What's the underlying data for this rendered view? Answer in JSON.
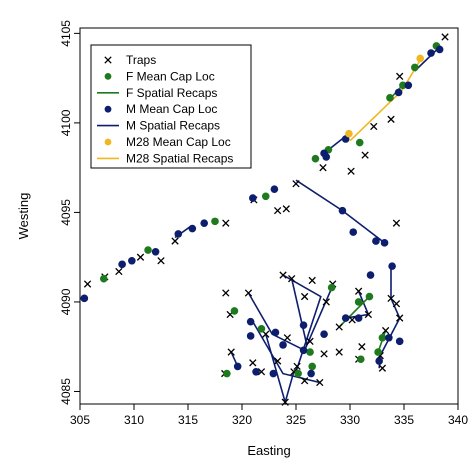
{
  "chart_data": {
    "type": "scatter",
    "xlabel": "Easting",
    "ylabel": "Westing",
    "xlim": [
      305,
      340
    ],
    "ylim": [
      4084.3,
      4105.3
    ],
    "x_ticks": [
      "305",
      "310",
      "315",
      "320",
      "325",
      "330",
      "335",
      "340"
    ],
    "y_ticks": [
      "4085",
      "4090",
      "4095",
      "4100",
      "4105"
    ],
    "legend_position": "top-left",
    "legend": [
      {
        "label": "Traps",
        "kind": "cross",
        "color": "#000000"
      },
      {
        "label": "F Mean Cap Loc",
        "kind": "dot",
        "color": "#1f7a1f"
      },
      {
        "label": "F Spatial Recaps",
        "kind": "line",
        "color": "#1f7a1f"
      },
      {
        "label": "M Mean Cap Loc",
        "kind": "dot",
        "color": "#0d1e6e"
      },
      {
        "label": "M Spatial Recaps",
        "kind": "line",
        "color": "#0d1e6e"
      },
      {
        "label": "M28 Mean Cap Loc",
        "kind": "dot",
        "color": "#f2b620"
      },
      {
        "label": "M28 Spatial Recaps",
        "kind": "line",
        "color": "#f2b620"
      }
    ],
    "series": [
      {
        "name": "Traps",
        "points": [
          [
            305.7,
            4091.0
          ],
          [
            307.3,
            4091.4
          ],
          [
            308.6,
            4091.7
          ],
          [
            310.6,
            4092.5
          ],
          [
            312.5,
            4092.3
          ],
          [
            313.8,
            4093.4
          ],
          [
            318.5,
            4094.4
          ],
          [
            321.1,
            4095.7
          ],
          [
            323.3,
            4095.1
          ],
          [
            324.1,
            4095.2
          ],
          [
            325.0,
            4096.6
          ],
          [
            327.5,
            4097.5
          ],
          [
            330.1,
            4097.3
          ],
          [
            331.4,
            4098.2
          ],
          [
            332.2,
            4099.8
          ],
          [
            333.8,
            4100.2
          ],
          [
            334.6,
            4102.6
          ],
          [
            338.8,
            4104.8
          ],
          [
            334.3,
            4094.4
          ],
          [
            318.5,
            4090.5
          ],
          [
            318.9,
            4089.3
          ],
          [
            320.6,
            4090.5
          ],
          [
            323.8,
            4091.5
          ],
          [
            324.6,
            4091.3
          ],
          [
            326.5,
            4091.2
          ],
          [
            325.8,
            4090.3
          ],
          [
            327.8,
            4090.0
          ],
          [
            328.4,
            4091.0
          ],
          [
            330.8,
            4090.6
          ],
          [
            333.8,
            4090.2
          ],
          [
            334.3,
            4089.9
          ],
          [
            322.2,
            4088.2
          ],
          [
            324.2,
            4088.0
          ],
          [
            326.3,
            4087.8
          ],
          [
            327.6,
            4087.1
          ],
          [
            329.0,
            4088.6
          ],
          [
            330.2,
            4089.0
          ],
          [
            331.7,
            4089.3
          ],
          [
            333.3,
            4088.4
          ],
          [
            334.6,
            4089.1
          ],
          [
            319.0,
            4087.2
          ],
          [
            321.0,
            4086.6
          ],
          [
            323.3,
            4086.7
          ],
          [
            325.1,
            4086.4
          ],
          [
            329.0,
            4087.2
          ],
          [
            331.1,
            4087.5
          ],
          [
            332.8,
            4087.0
          ],
          [
            318.4,
            4086.0
          ],
          [
            321.8,
            4086.1
          ],
          [
            324.8,
            4086.1
          ],
          [
            330.8,
            4086.8
          ],
          [
            333.0,
            4086.3
          ],
          [
            327.2,
            4085.5
          ],
          [
            324.0,
            4084.4
          ],
          [
            325.8,
            4085.6
          ]
        ]
      },
      {
        "name": "F Mean Cap Loc",
        "points": [
          [
            307.2,
            4091.3
          ],
          [
            311.3,
            4092.9
          ],
          [
            317.5,
            4094.5
          ],
          [
            322.2,
            4095.9
          ],
          [
            326.8,
            4098.0
          ],
          [
            328.0,
            4098.5
          ],
          [
            330.9,
            4098.9
          ],
          [
            333.7,
            4101.4
          ],
          [
            334.9,
            4102.1
          ],
          [
            336.0,
            4103.1
          ],
          [
            338.0,
            4104.3
          ],
          [
            319.3,
            4089.5
          ],
          [
            321.8,
            4088.5
          ],
          [
            326.3,
            4087.2
          ],
          [
            328.3,
            4090.8
          ],
          [
            330.8,
            4090.0
          ],
          [
            331.8,
            4090.3
          ],
          [
            333.0,
            4088.0
          ],
          [
            332.6,
            4087.2
          ],
          [
            331.0,
            4086.8
          ],
          [
            326.5,
            4086.4
          ],
          [
            325.2,
            4086.0
          ],
          [
            318.6,
            4086.0
          ]
        ]
      },
      {
        "name": "M Mean Cap Loc",
        "points": [
          [
            305.4,
            4090.2
          ],
          [
            308.9,
            4092.1
          ],
          [
            309.8,
            4092.3
          ],
          [
            312.0,
            4092.8
          ],
          [
            314.1,
            4093.8
          ],
          [
            315.4,
            4094.1
          ],
          [
            316.5,
            4094.4
          ],
          [
            321.0,
            4095.8
          ],
          [
            323.0,
            4096.3
          ],
          [
            327.6,
            4098.3
          ],
          [
            327.8,
            4098.1
          ],
          [
            329.6,
            4099.1
          ],
          [
            334.5,
            4101.7
          ],
          [
            335.4,
            4102.1
          ],
          [
            337.5,
            4103.9
          ],
          [
            338.3,
            4104.1
          ],
          [
            329.3,
            4095.1
          ],
          [
            330.3,
            4093.9
          ],
          [
            332.4,
            4093.4
          ],
          [
            333.2,
            4093.3
          ],
          [
            333.9,
            4092.0
          ],
          [
            331.9,
            4091.5
          ],
          [
            320.8,
            4088.9
          ],
          [
            320.8,
            4088.1
          ],
          [
            323.1,
            4088.3
          ],
          [
            325.7,
            4088.7
          ],
          [
            323.8,
            4087.6
          ],
          [
            327.6,
            4088.2
          ],
          [
            325.7,
            4087.3
          ],
          [
            332.7,
            4086.7
          ],
          [
            333.6,
            4088.0
          ],
          [
            334.6,
            4087.8
          ],
          [
            319.6,
            4086.4
          ],
          [
            321.3,
            4086.1
          ],
          [
            322.9,
            4086.0
          ],
          [
            326.4,
            4086.0
          ],
          [
            330.8,
            4089.1
          ],
          [
            329.6,
            4089.1
          ]
        ]
      },
      {
        "name": "M28 Mean Cap Loc",
        "points": [
          [
            329.9,
            4099.4
          ],
          [
            336.5,
            4103.6
          ]
        ]
      }
    ],
    "recap_lines": [
      {
        "series": "M Spatial Recaps",
        "points": [
          [
            313.8,
            4093.6
          ],
          [
            315.2,
            4094.2
          ]
        ]
      },
      {
        "series": "M Spatial Recaps",
        "points": [
          [
            325.0,
            4096.8
          ],
          [
            329.3,
            4095.1
          ],
          [
            333.2,
            4093.3
          ]
        ]
      },
      {
        "series": "M Spatial Recaps",
        "points": [
          [
            327.6,
            4098.3
          ],
          [
            329.9,
            4099.4
          ]
        ]
      },
      {
        "series": "M Spatial Recaps",
        "points": [
          [
            336.0,
            4102.9
          ],
          [
            338.4,
            4104.3
          ]
        ]
      },
      {
        "series": "M Spatial Recaps",
        "points": [
          [
            320.6,
            4090.5
          ],
          [
            322.8,
            4088.2
          ],
          [
            325.8,
            4087.3
          ]
        ]
      },
      {
        "series": "M Spatial Recaps",
        "points": [
          [
            323.8,
            4091.5
          ],
          [
            327.3,
            4090.3
          ],
          [
            325.0,
            4086.1
          ]
        ]
      },
      {
        "series": "M Spatial Recaps",
        "points": [
          [
            324.6,
            4091.3
          ],
          [
            326.0,
            4087.6
          ]
        ]
      },
      {
        "series": "M Spatial Recaps",
        "points": [
          [
            328.4,
            4090.9
          ],
          [
            325.8,
            4087.3
          ]
        ]
      },
      {
        "series": "M Spatial Recaps",
        "points": [
          [
            321.0,
            4088.9
          ],
          [
            323.8,
            4086.0
          ],
          [
            327.2,
            4085.5
          ]
        ]
      },
      {
        "series": "M Spatial Recaps",
        "points": [
          [
            319.0,
            4087.2
          ],
          [
            319.6,
            4086.4
          ]
        ]
      },
      {
        "series": "M Spatial Recaps",
        "points": [
          [
            322.2,
            4088.2
          ],
          [
            324.0,
            4084.4
          ],
          [
            324.8,
            4086.1
          ]
        ]
      },
      {
        "series": "M Spatial Recaps",
        "points": [
          [
            333.8,
            4092.0
          ],
          [
            333.8,
            4090.2
          ],
          [
            334.6,
            4089.1
          ],
          [
            332.8,
            4087.0
          ],
          [
            332.7,
            4086.3
          ]
        ]
      },
      {
        "series": "M Spatial Recaps",
        "points": [
          [
            330.8,
            4090.6
          ],
          [
            331.7,
            4089.3
          ],
          [
            329.6,
            4089.1
          ]
        ]
      },
      {
        "series": "F Spatial Recaps",
        "points": [
          [
            329.0,
            4088.6
          ],
          [
            331.8,
            4090.3
          ]
        ]
      },
      {
        "series": "F Spatial Recaps",
        "points": [
          [
            333.8,
            4101.4
          ],
          [
            335.0,
            4102.2
          ]
        ]
      },
      {
        "series": "F Spatial Recaps",
        "points": [
          [
            333.3,
            4088.4
          ],
          [
            332.6,
            4087.2
          ]
        ]
      },
      {
        "series": "M28 Spatial Recaps",
        "points": [
          [
            330.0,
            4099.0
          ],
          [
            334.8,
            4101.8
          ],
          [
            336.6,
            4103.6
          ]
        ]
      }
    ]
  }
}
